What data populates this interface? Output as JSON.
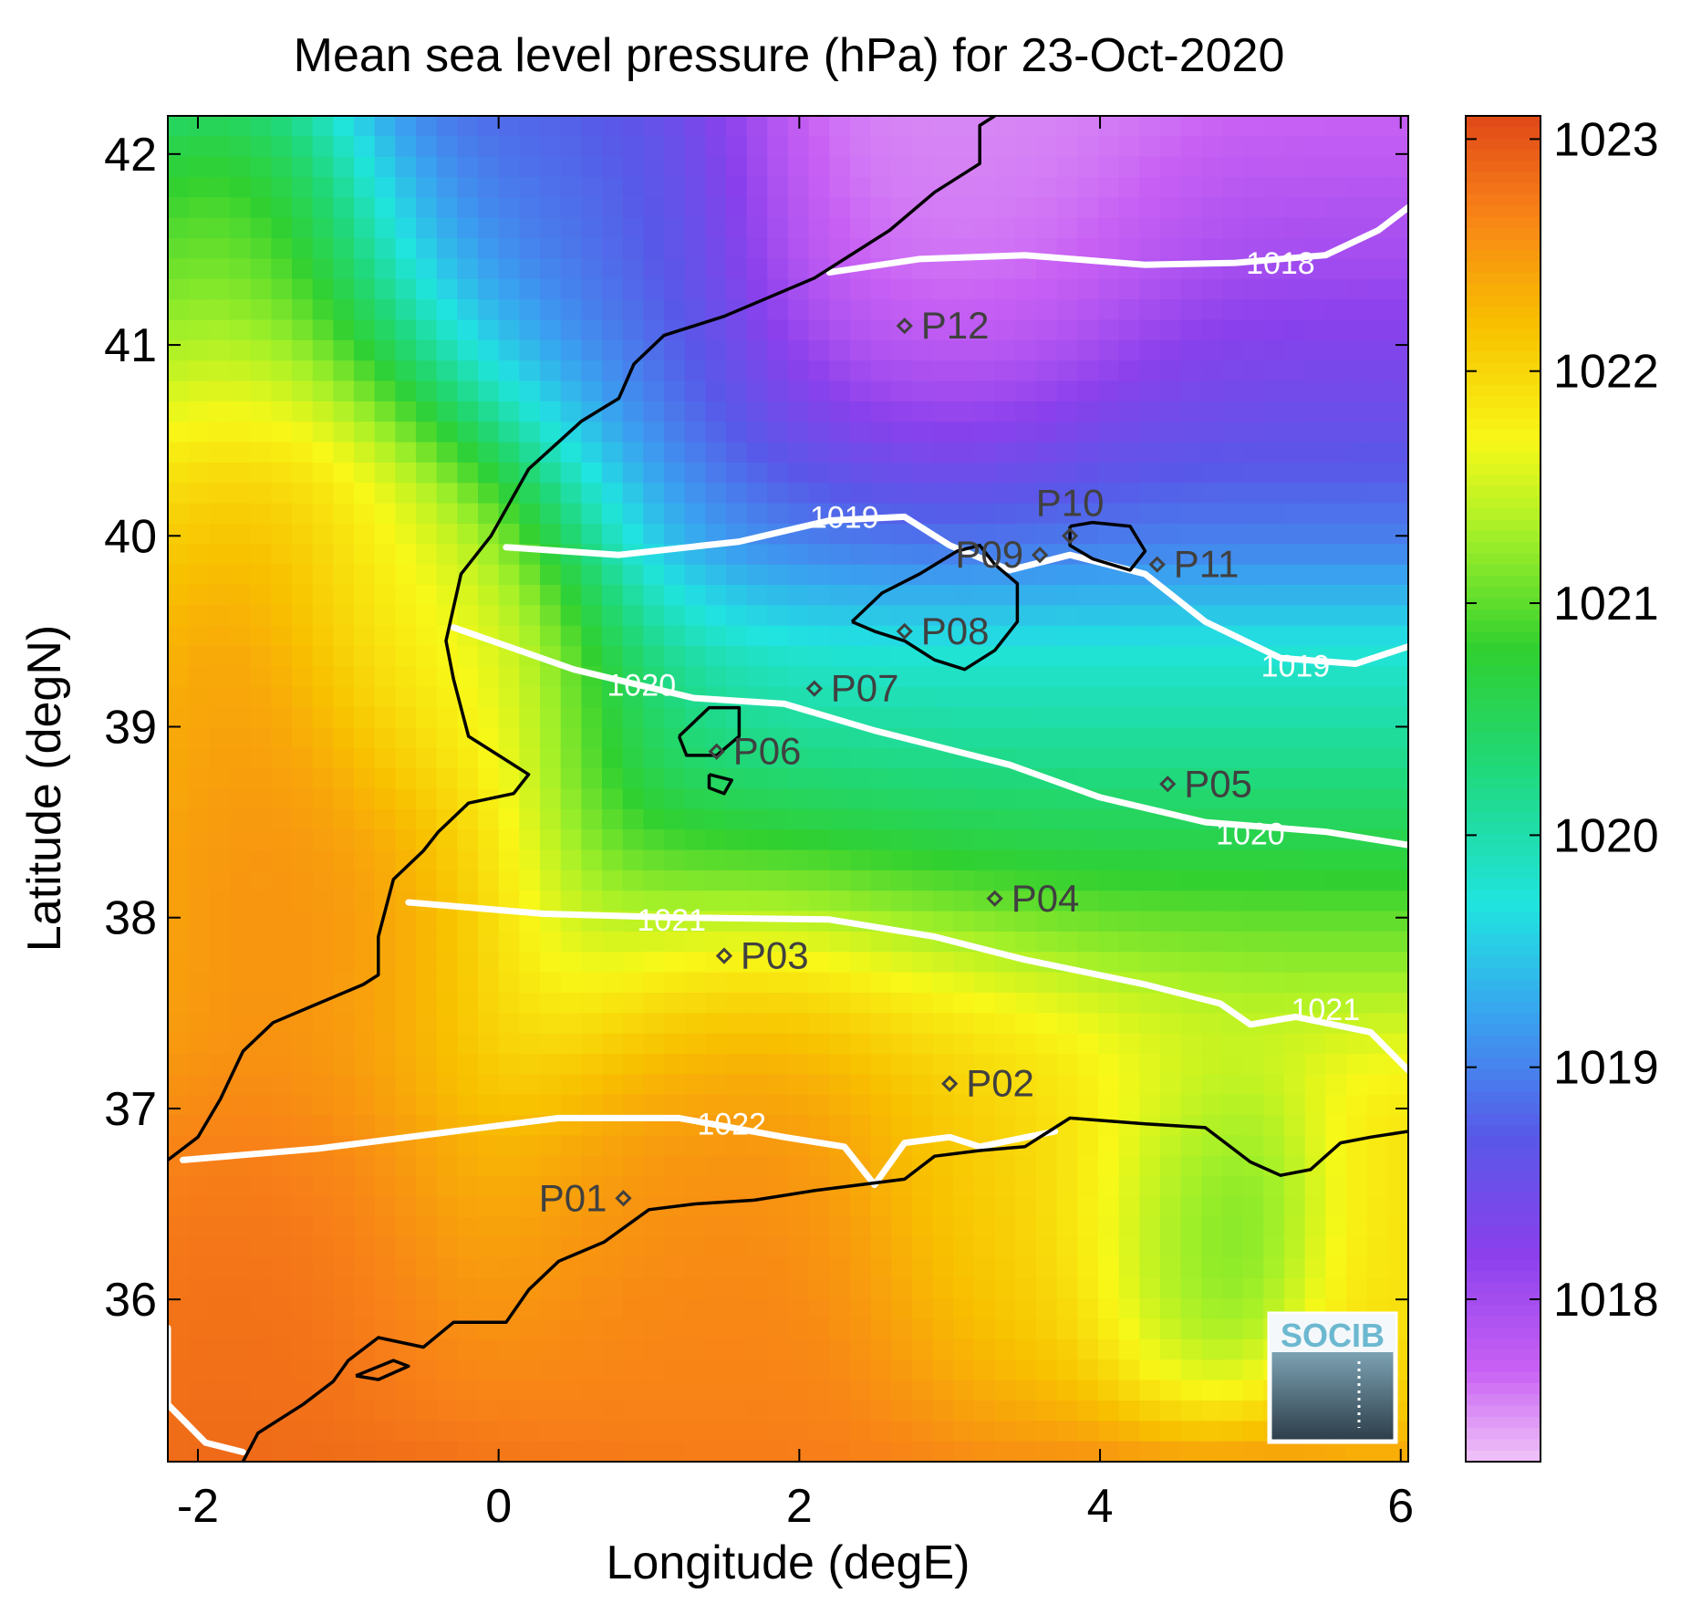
{
  "chart_data": {
    "type": "heatmap",
    "title": "Mean sea level pressure (hPa) for 23-Oct-2020",
    "xlabel": "Longitude (degE)",
    "ylabel": "Latitude (degN)",
    "xlim": [
      -2.2,
      6.05
    ],
    "ylim": [
      35.15,
      42.2
    ],
    "x_ticks": [
      {
        "value": -2,
        "label": "-2"
      },
      {
        "value": 0,
        "label": "0"
      },
      {
        "value": 2,
        "label": "2"
      },
      {
        "value": 4,
        "label": "4"
      },
      {
        "value": 6,
        "label": "6"
      }
    ],
    "y_ticks": [
      {
        "value": 36,
        "label": "36"
      },
      {
        "value": 37,
        "label": "37"
      },
      {
        "value": 38,
        "label": "38"
      },
      {
        "value": 39,
        "label": "39"
      },
      {
        "value": 40,
        "label": "40"
      },
      {
        "value": 41,
        "label": "41"
      },
      {
        "value": 42,
        "label": "42"
      }
    ],
    "colorbar": {
      "min": 1017.3,
      "max": 1023.1,
      "ticks": [
        {
          "value": 1018,
          "label": "1018"
        },
        {
          "value": 1019,
          "label": "1019"
        },
        {
          "value": 1020,
          "label": "1020"
        },
        {
          "value": 1021,
          "label": "1021"
        },
        {
          "value": 1022,
          "label": "1022"
        },
        {
          "value": 1023,
          "label": "1023"
        }
      ],
      "colormap": [
        {
          "value": 1017.3,
          "color": "#f0c4f8"
        },
        {
          "value": 1017.7,
          "color": "#c860f4"
        },
        {
          "value": 1018.2,
          "color": "#8a40ec"
        },
        {
          "value": 1018.7,
          "color": "#5858e8"
        },
        {
          "value": 1019.2,
          "color": "#3aa0f0"
        },
        {
          "value": 1019.7,
          "color": "#20e4e0"
        },
        {
          "value": 1020.3,
          "color": "#20d878"
        },
        {
          "value": 1020.8,
          "color": "#30d030"
        },
        {
          "value": 1021.3,
          "color": "#a4f028"
        },
        {
          "value": 1021.7,
          "color": "#f8f818"
        },
        {
          "value": 1022.2,
          "color": "#f8c000"
        },
        {
          "value": 1022.7,
          "color": "#f88018"
        },
        {
          "value": 1023.1,
          "color": "#e04818"
        }
      ]
    },
    "contours": [
      {
        "label": "1018",
        "label_at": [
          5.2,
          41.43
        ],
        "points": [
          [
            2.2,
            41.38
          ],
          [
            2.8,
            41.45
          ],
          [
            3.5,
            41.47
          ],
          [
            4.3,
            41.42
          ],
          [
            4.9,
            41.43
          ],
          [
            5.5,
            41.47
          ],
          [
            5.85,
            41.6
          ],
          [
            6.05,
            41.72
          ]
        ]
      },
      {
        "label": "1019",
        "label_at": [
          2.3,
          40.1
        ],
        "points": [
          [
            0.05,
            39.94
          ],
          [
            0.8,
            39.9
          ],
          [
            1.6,
            39.97
          ],
          [
            2.2,
            40.08
          ],
          [
            2.7,
            40.1
          ],
          [
            3.0,
            39.95
          ],
          [
            3.4,
            39.82
          ],
          [
            3.8,
            39.9
          ],
          [
            4.3,
            39.8
          ],
          [
            4.7,
            39.55
          ],
          [
            5.2,
            39.36
          ],
          [
            5.7,
            39.33
          ],
          [
            6.05,
            39.42
          ]
        ]
      },
      {
        "label": "1019",
        "label_at": [
          5.3,
          39.32
        ],
        "points": []
      },
      {
        "label": "1020",
        "label_at": [
          0.95,
          39.22
        ],
        "points": [
          [
            -0.3,
            39.52
          ],
          [
            0.5,
            39.3
          ],
          [
            1.3,
            39.15
          ],
          [
            1.9,
            39.12
          ],
          [
            2.5,
            38.98
          ],
          [
            3.4,
            38.8
          ],
          [
            4.0,
            38.63
          ],
          [
            4.7,
            38.5
          ],
          [
            5.5,
            38.45
          ],
          [
            6.05,
            38.38
          ]
        ]
      },
      {
        "label": "1020",
        "label_at": [
          5.0,
          38.44
        ],
        "points": []
      },
      {
        "label": "1021",
        "label_at": [
          1.15,
          37.99
        ],
        "points": [
          [
            -0.6,
            38.08
          ],
          [
            0.3,
            38.02
          ],
          [
            1.2,
            38.0
          ],
          [
            2.2,
            37.99
          ],
          [
            2.9,
            37.9
          ],
          [
            3.5,
            37.78
          ],
          [
            4.3,
            37.65
          ],
          [
            4.8,
            37.55
          ],
          [
            5.0,
            37.44
          ],
          [
            5.3,
            37.48
          ],
          [
            5.8,
            37.4
          ],
          [
            6.05,
            37.2
          ]
        ]
      },
      {
        "label": "1021",
        "label_at": [
          5.5,
          37.52
        ],
        "points": []
      },
      {
        "label": "1022",
        "label_at": [
          1.55,
          36.92
        ],
        "points": [
          [
            -2.1,
            36.73
          ],
          [
            -1.2,
            36.79
          ],
          [
            -0.3,
            36.88
          ],
          [
            0.4,
            36.95
          ],
          [
            1.2,
            36.95
          ],
          [
            1.9,
            36.85
          ],
          [
            2.3,
            36.8
          ],
          [
            2.5,
            36.6
          ],
          [
            2.7,
            36.82
          ],
          [
            3.0,
            36.85
          ],
          [
            3.2,
            36.8
          ],
          [
            3.7,
            36.88
          ]
        ]
      },
      {
        "label": "",
        "label_at": [
          0,
          0
        ],
        "points": [
          [
            -2.2,
            35.85
          ],
          [
            -2.2,
            35.45
          ],
          [
            -1.95,
            35.25
          ],
          [
            -1.7,
            35.2
          ]
        ]
      }
    ],
    "stations": [
      {
        "name": "P01",
        "lon": 0.83,
        "lat": 36.53,
        "label_side": "left"
      },
      {
        "name": "P02",
        "lon": 3.0,
        "lat": 37.13,
        "label_side": "right"
      },
      {
        "name": "P03",
        "lon": 1.5,
        "lat": 37.8,
        "label_side": "right"
      },
      {
        "name": "P04",
        "lon": 3.3,
        "lat": 38.1,
        "label_side": "right"
      },
      {
        "name": "P05",
        "lon": 4.45,
        "lat": 38.7,
        "label_side": "right"
      },
      {
        "name": "P06",
        "lon": 1.45,
        "lat": 38.87,
        "label_side": "right"
      },
      {
        "name": "P07",
        "lon": 2.1,
        "lat": 39.2,
        "label_side": "right"
      },
      {
        "name": "P08",
        "lon": 2.7,
        "lat": 39.5,
        "label_side": "right"
      },
      {
        "name": "P09",
        "lon": 3.6,
        "lat": 39.9,
        "label_side": "left"
      },
      {
        "name": "P10",
        "lon": 3.8,
        "lat": 40.0,
        "label_side": "above"
      },
      {
        "name": "P11",
        "lon": 4.38,
        "lat": 39.85,
        "label_side": "right"
      },
      {
        "name": "P12",
        "lon": 2.7,
        "lat": 41.1,
        "label_side": "right"
      }
    ],
    "coastlines": [
      [
        [
          6.05,
          36.88
        ],
        [
          5.8,
          36.85
        ],
        [
          5.6,
          36.82
        ],
        [
          5.4,
          36.68
        ],
        [
          5.2,
          36.65
        ],
        [
          5.0,
          36.72
        ],
        [
          4.7,
          36.9
        ],
        [
          4.3,
          36.92
        ],
        [
          3.8,
          36.95
        ],
        [
          3.5,
          36.8
        ],
        [
          3.2,
          36.78
        ],
        [
          2.9,
          36.75
        ],
        [
          2.7,
          36.63
        ],
        [
          2.4,
          36.6
        ],
        [
          2.1,
          36.57
        ],
        [
          1.7,
          36.52
        ],
        [
          1.3,
          36.5
        ],
        [
          1.0,
          36.47
        ],
        [
          0.7,
          36.3
        ],
        [
          0.4,
          36.2
        ],
        [
          0.2,
          36.05
        ],
        [
          0.05,
          35.88
        ],
        [
          -0.3,
          35.88
        ],
        [
          -0.5,
          35.75
        ],
        [
          -0.8,
          35.8
        ],
        [
          -1.0,
          35.68
        ],
        [
          -1.1,
          35.57
        ],
        [
          -1.3,
          35.45
        ],
        [
          -1.6,
          35.3
        ],
        [
          -1.7,
          35.15
        ]
      ],
      [
        [
          -2.2,
          36.73
        ],
        [
          -2.0,
          36.85
        ],
        [
          -1.85,
          37.05
        ],
        [
          -1.7,
          37.3
        ],
        [
          -1.5,
          37.45
        ],
        [
          -1.2,
          37.55
        ],
        [
          -0.9,
          37.65
        ],
        [
          -0.8,
          37.7
        ],
        [
          -0.8,
          37.9
        ],
        [
          -0.7,
          38.2
        ],
        [
          -0.5,
          38.35
        ],
        [
          -0.4,
          38.45
        ],
        [
          -0.2,
          38.6
        ],
        [
          0.1,
          38.65
        ],
        [
          0.2,
          38.75
        ],
        [
          0.0,
          38.85
        ],
        [
          -0.2,
          38.95
        ],
        [
          -0.3,
          39.25
        ],
        [
          -0.35,
          39.45
        ],
        [
          -0.25,
          39.8
        ],
        [
          -0.05,
          40.0
        ],
        [
          0.2,
          40.35
        ],
        [
          0.55,
          40.6
        ],
        [
          0.8,
          40.72
        ],
        [
          0.9,
          40.9
        ],
        [
          1.1,
          41.05
        ],
        [
          1.5,
          41.15
        ],
        [
          2.1,
          41.35
        ],
        [
          2.3,
          41.45
        ],
        [
          2.6,
          41.6
        ],
        [
          2.9,
          41.8
        ],
        [
          3.2,
          41.95
        ],
        [
          3.2,
          42.15
        ],
        [
          3.3,
          42.2
        ]
      ],
      [
        [
          2.35,
          39.55
        ],
        [
          2.55,
          39.7
        ],
        [
          2.8,
          39.8
        ],
        [
          3.05,
          39.92
        ],
        [
          3.2,
          39.95
        ],
        [
          3.3,
          39.85
        ],
        [
          3.45,
          39.75
        ],
        [
          3.45,
          39.55
        ],
        [
          3.3,
          39.4
        ],
        [
          3.1,
          39.3
        ],
        [
          2.9,
          39.35
        ],
        [
          2.7,
          39.45
        ],
        [
          2.5,
          39.5
        ],
        [
          2.35,
          39.55
        ]
      ],
      [
        [
          3.8,
          40.05
        ],
        [
          3.95,
          40.07
        ],
        [
          4.2,
          40.05
        ],
        [
          4.3,
          39.92
        ],
        [
          4.2,
          39.82
        ],
        [
          3.95,
          39.88
        ],
        [
          3.8,
          39.95
        ],
        [
          3.8,
          40.05
        ]
      ],
      [
        [
          1.2,
          38.95
        ],
        [
          1.4,
          39.1
        ],
        [
          1.6,
          39.1
        ],
        [
          1.6,
          38.95
        ],
        [
          1.45,
          38.85
        ],
        [
          1.25,
          38.85
        ],
        [
          1.2,
          38.95
        ]
      ],
      [
        [
          1.4,
          38.75
        ],
        [
          1.55,
          38.72
        ],
        [
          1.5,
          38.65
        ],
        [
          1.4,
          38.68
        ],
        [
          1.4,
          38.75
        ]
      ],
      [
        [
          -0.95,
          35.6
        ],
        [
          -0.7,
          35.68
        ],
        [
          -0.6,
          35.65
        ],
        [
          -0.8,
          35.58
        ],
        [
          -0.95,
          35.6
        ]
      ]
    ],
    "heatmap_anchors": [
      {
        "lon": -1.6,
        "lat": 39.8,
        "value": 1023.0,
        "radius": 1.5
      },
      {
        "lon": -1.5,
        "lat": 38.2,
        "value": 1022.8,
        "radius": 1.1
      },
      {
        "lon": -1.8,
        "lat": 36.2,
        "value": 1022.9,
        "radius": 1.0
      },
      {
        "lon": -1.8,
        "lat": 41.6,
        "value": 1021.4,
        "radius": 0.9
      },
      {
        "lon": -0.6,
        "lat": 39.5,
        "value": 1021.5,
        "radius": 0.7
      },
      {
        "lon": 0.1,
        "lat": 41.9,
        "value": 1019.0,
        "radius": 1.2
      },
      {
        "lon": 1.7,
        "lat": 36.1,
        "value": 1022.7,
        "radius": 1.2
      },
      {
        "lon": 3.3,
        "lat": 36.4,
        "value": 1022.0,
        "radius": 0.8
      },
      {
        "lon": 4.4,
        "lat": 36.4,
        "value": 1021.6,
        "radius": 0.7
      },
      {
        "lon": 4.8,
        "lat": 36.3,
        "value": 1020.6,
        "radius": 0.6
      },
      {
        "lon": 5.9,
        "lat": 36.1,
        "value": 1021.8,
        "radius": 0.7
      },
      {
        "lon": 3.0,
        "lat": 42.0,
        "value": 1017.5,
        "radius": 1.0
      }
    ],
    "logo_text": "SOCIB"
  }
}
